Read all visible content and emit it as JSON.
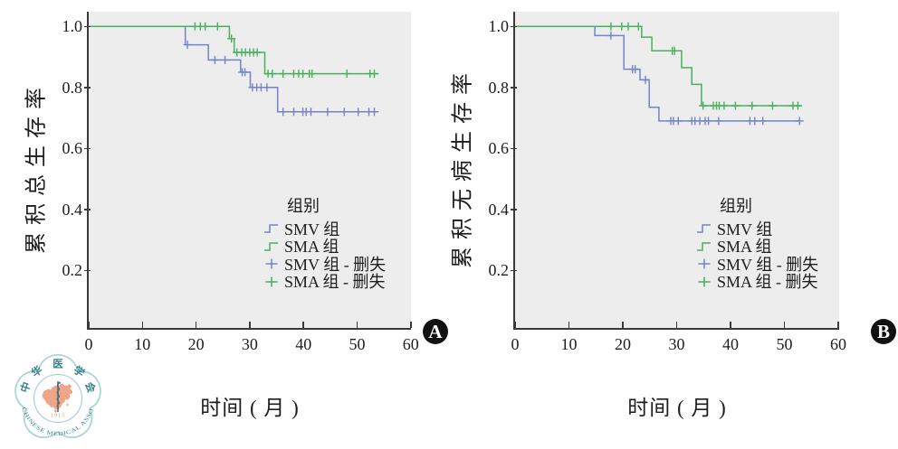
{
  "colors": {
    "smv_blue": "#7584c9",
    "sma_green": "#49b05e",
    "plot_background": "#ededed",
    "axis": "#3a3a3a",
    "badge_background": "#111111",
    "badge_text": "#ffffff"
  },
  "logo": {
    "org_chars": [
      "中",
      "华",
      "医",
      "学",
      "会"
    ],
    "year": "1915",
    "org_en": "CHINESE MEDICAL ASSOCIATION",
    "outline_color": "#a9d6db",
    "map_color": "#f0a488",
    "text_color": "#37818d",
    "year_color": "#e8936f"
  },
  "chart_data": [
    {
      "type": "line",
      "subtype": "kaplan-meier-step",
      "panel_label": "A",
      "xlabel": "时间 ( 月 )",
      "ylabel": "累积总生存率",
      "legend_title": "组别",
      "xlim": [
        0,
        60
      ],
      "ylim": [
        0,
        1.04
      ],
      "xticks": [
        0,
        10,
        20,
        30,
        40,
        50,
        60
      ],
      "yticks": [
        0.2,
        0.4,
        0.6,
        0.8,
        1.0
      ],
      "legend": [
        {
          "label": "SMV 组",
          "symbol": "step",
          "color": "#7584c9"
        },
        {
          "label": "SMA 组",
          "symbol": "step",
          "color": "#49b05e"
        },
        {
          "label": "SMV 组 - 删失",
          "symbol": "plus",
          "color": "#7584c9"
        },
        {
          "label": "SMA 组 - 删失",
          "symbol": "plus",
          "color": "#49b05e"
        }
      ],
      "series": [
        {
          "name": "SMV 组",
          "key": "smv",
          "color": "#7584c9",
          "steps": [
            [
              0,
              1.0
            ],
            [
              18,
              0.94
            ],
            [
              22.3,
              0.89
            ],
            [
              28.3,
              0.85
            ],
            [
              30.1,
              0.8
            ],
            [
              35.2,
              0.72
            ],
            [
              54,
              0.72
            ]
          ],
          "censors": [
            [
              18.4,
              0.94
            ],
            [
              23.5,
              0.89
            ],
            [
              25.4,
              0.89
            ],
            [
              28.6,
              0.85
            ],
            [
              29.1,
              0.85
            ],
            [
              30.5,
              0.8
            ],
            [
              31.3,
              0.8
            ],
            [
              32.1,
              0.8
            ],
            [
              33.2,
              0.8
            ],
            [
              36.2,
              0.72
            ],
            [
              38.2,
              0.72
            ],
            [
              39.9,
              0.72
            ],
            [
              40.5,
              0.72
            ],
            [
              41.4,
              0.72
            ],
            [
              44.5,
              0.72
            ],
            [
              47.6,
              0.72
            ],
            [
              50.2,
              0.72
            ],
            [
              52.2,
              0.72
            ],
            [
              53.2,
              0.72
            ]
          ]
        },
        {
          "name": "SMA 组",
          "key": "sma",
          "color": "#49b05e",
          "steps": [
            [
              0,
              1.0
            ],
            [
              26.2,
              0.96
            ],
            [
              27.1,
              0.915
            ],
            [
              32.8,
              0.845
            ],
            [
              54,
              0.845
            ]
          ],
          "censors": [
            [
              19.8,
              1.0
            ],
            [
              20.8,
              1.0
            ],
            [
              21.7,
              1.0
            ],
            [
              24.0,
              1.0
            ],
            [
              26.6,
              0.96
            ],
            [
              27.6,
              0.915
            ],
            [
              28.5,
              0.915
            ],
            [
              29.2,
              0.915
            ],
            [
              30.0,
              0.915
            ],
            [
              30.7,
              0.915
            ],
            [
              31.4,
              0.915
            ],
            [
              33.4,
              0.845
            ],
            [
              34.2,
              0.845
            ],
            [
              36.2,
              0.845
            ],
            [
              38.2,
              0.845
            ],
            [
              39.1,
              0.845
            ],
            [
              39.9,
              0.845
            ],
            [
              41.1,
              0.845
            ],
            [
              41.6,
              0.845
            ],
            [
              48.1,
              0.845
            ],
            [
              52.4,
              0.845
            ],
            [
              53.2,
              0.845
            ]
          ]
        }
      ]
    },
    {
      "type": "line",
      "subtype": "kaplan-meier-step",
      "panel_label": "B",
      "xlabel": "时间 ( 月 )",
      "ylabel": "累积无病生存率",
      "legend_title": "组别",
      "xlim": [
        0,
        60
      ],
      "ylim": [
        0,
        1.04
      ],
      "xticks": [
        0,
        10,
        20,
        30,
        40,
        50,
        60
      ],
      "yticks": [
        0.2,
        0.4,
        0.6,
        0.8,
        1.0
      ],
      "legend": [
        {
          "label": "SMV 组",
          "symbol": "step",
          "color": "#7584c9"
        },
        {
          "label": "SMA 组",
          "symbol": "step",
          "color": "#49b05e"
        },
        {
          "label": "SMV 组 - 删失",
          "symbol": "plus",
          "color": "#7584c9"
        },
        {
          "label": "SMA 组 - 删失",
          "symbol": "plus",
          "color": "#49b05e"
        }
      ],
      "series": [
        {
          "name": "SMV 组",
          "key": "smv",
          "color": "#7584c9",
          "steps": [
            [
              0,
              1.0
            ],
            [
              14.8,
              0.97
            ],
            [
              20.2,
              0.86
            ],
            [
              23.2,
              0.825
            ],
            [
              24.9,
              0.735
            ],
            [
              26.7,
              0.69
            ],
            [
              53,
              0.69
            ]
          ],
          "censors": [
            [
              17.8,
              0.97
            ],
            [
              21.8,
              0.86
            ],
            [
              22.3,
              0.86
            ],
            [
              24.2,
              0.825
            ],
            [
              28.9,
              0.69
            ],
            [
              29.4,
              0.69
            ],
            [
              30.3,
              0.69
            ],
            [
              32.8,
              0.69
            ],
            [
              33.4,
              0.69
            ],
            [
              34.3,
              0.69
            ],
            [
              35.3,
              0.69
            ],
            [
              35.9,
              0.69
            ],
            [
              37.8,
              0.69
            ],
            [
              43.6,
              0.69
            ],
            [
              44.5,
              0.69
            ],
            [
              46.0,
              0.69
            ],
            [
              52.8,
              0.69
            ]
          ]
        },
        {
          "name": "SMA 组",
          "key": "sma",
          "color": "#49b05e",
          "steps": [
            [
              0,
              1.0
            ],
            [
              23.5,
              0.965
            ],
            [
              25.4,
              0.92
            ],
            [
              30.9,
              0.865
            ],
            [
              32.8,
              0.81
            ],
            [
              34.6,
              0.74
            ],
            [
              53.2,
              0.74
            ]
          ],
          "censors": [
            [
              17.8,
              1.0
            ],
            [
              19.8,
              1.0
            ],
            [
              21.0,
              1.0
            ],
            [
              22.9,
              1.0
            ],
            [
              29.2,
              0.92
            ],
            [
              29.6,
              0.92
            ],
            [
              34.9,
              0.74
            ],
            [
              36.8,
              0.74
            ],
            [
              37.4,
              0.74
            ],
            [
              37.9,
              0.74
            ],
            [
              38.8,
              0.74
            ],
            [
              40.9,
              0.74
            ],
            [
              44.0,
              0.74
            ],
            [
              47.8,
              0.74
            ],
            [
              51.6,
              0.74
            ],
            [
              52.5,
              0.74
            ]
          ]
        }
      ]
    }
  ]
}
